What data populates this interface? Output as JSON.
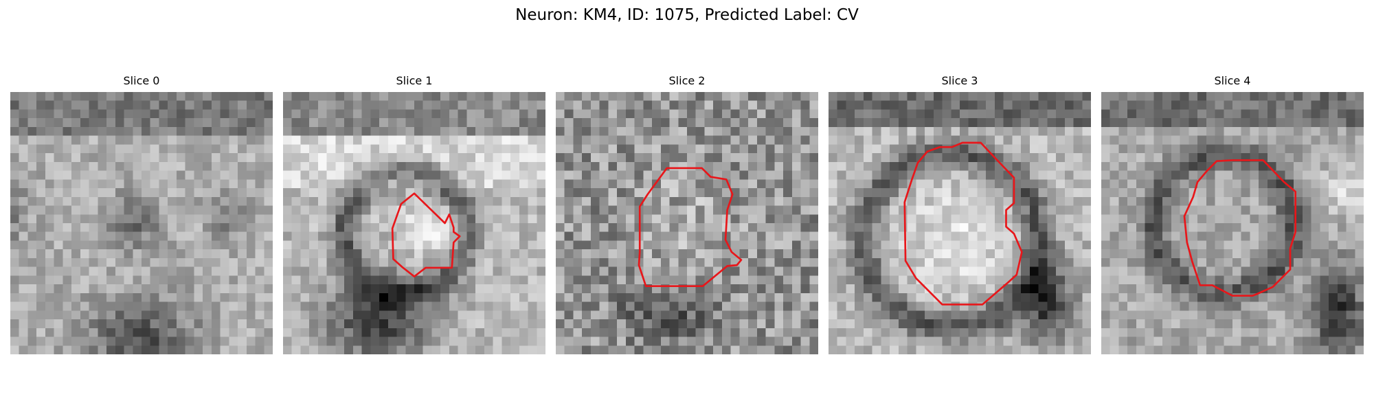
{
  "figure": {
    "title": "Neuron: KM4, ID: 1075, Predicted Label: CV",
    "contour_color": "#e8161a",
    "image_colormap": "gray"
  },
  "panels": [
    {
      "title": "Slice 0",
      "has_contour": false
    },
    {
      "title": "Slice 1",
      "has_contour": true
    },
    {
      "title": "Slice 2",
      "has_contour": true
    },
    {
      "title": "Slice 3",
      "has_contour": true
    },
    {
      "title": "Slice 4",
      "has_contour": true
    }
  ]
}
